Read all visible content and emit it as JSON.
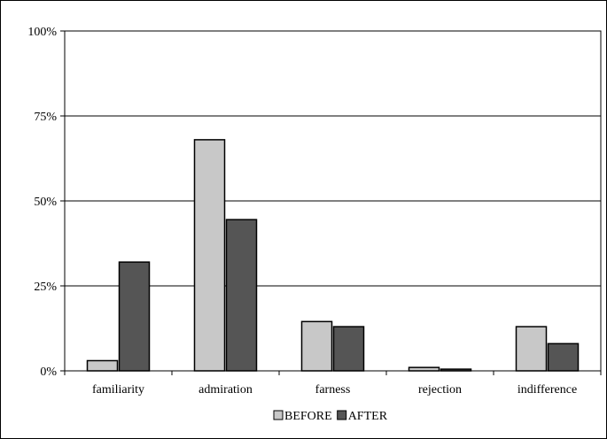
{
  "chart_data": {
    "type": "bar",
    "categories": [
      "familiarity",
      "admiration",
      "farness",
      "rejection",
      "indifference"
    ],
    "series": [
      {
        "name": "BEFORE",
        "values": [
          3,
          68,
          14.5,
          1,
          13
        ],
        "color": "#c8c8c8"
      },
      {
        "name": "AFTER",
        "values": [
          32,
          44.5,
          13,
          0.5,
          8
        ],
        "color": "#555555"
      }
    ],
    "y_ticks": [
      {
        "value": 0,
        "label": "0%"
      },
      {
        "value": 25,
        "label": "25%"
      },
      {
        "value": 50,
        "label": "50%"
      },
      {
        "value": 75,
        "label": "75%"
      },
      {
        "value": 100,
        "label": "100%"
      }
    ],
    "ylim": [
      0,
      100
    ],
    "grid": true,
    "legend_position": "bottom-center"
  }
}
